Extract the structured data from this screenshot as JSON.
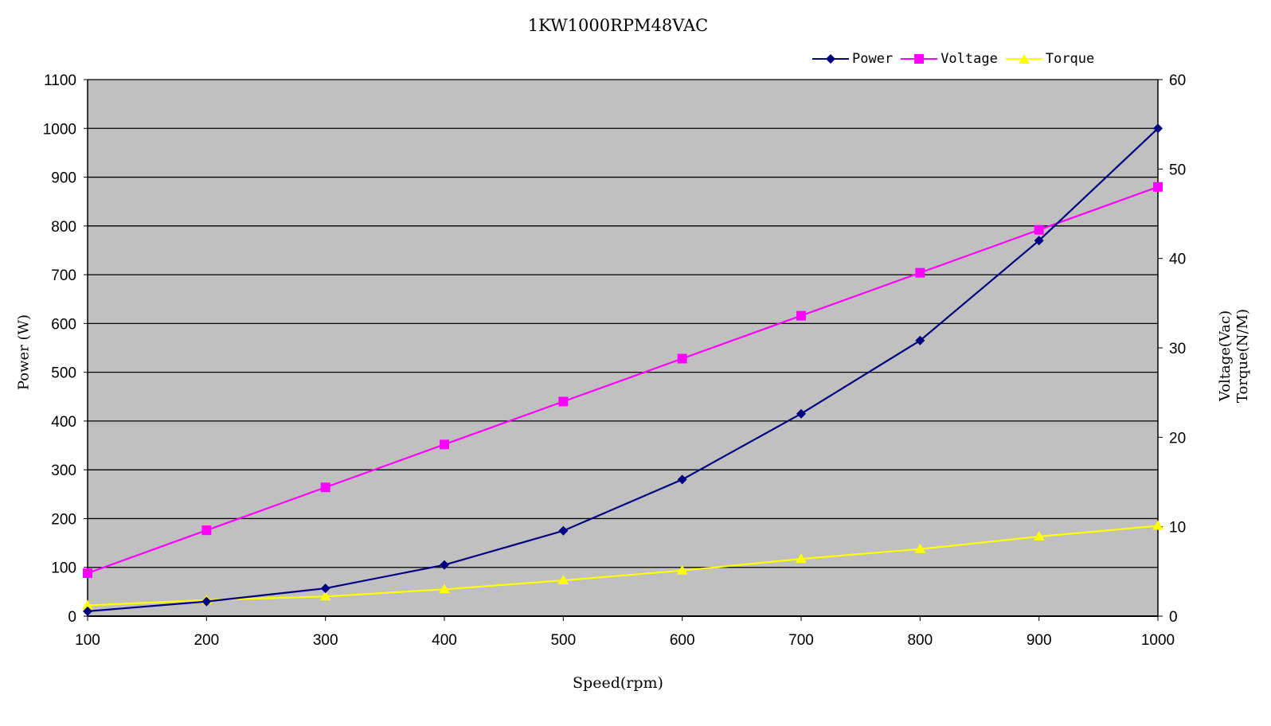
{
  "chart_data": {
    "type": "line",
    "title": "1KW1000RPM48VAC",
    "xlabel": "Speed(rpm)",
    "ylabel": "Power (W)",
    "ylabel_right": [
      "Voltage(Vac)",
      "Torque(N/M)"
    ],
    "x": [
      100,
      200,
      300,
      400,
      500,
      600,
      700,
      800,
      900,
      1000
    ],
    "xlim": [
      100,
      1000
    ],
    "ylim": [
      0,
      1100
    ],
    "ylim_right": [
      0,
      60
    ],
    "yticks_left": [
      0,
      100,
      200,
      300,
      400,
      500,
      600,
      700,
      800,
      900,
      1000,
      1100
    ],
    "yticks_right": [
      0,
      10,
      20,
      30,
      40,
      50,
      60
    ],
    "grid": true,
    "legend_position": "top-right",
    "plot_background": "#c0c0c0",
    "series": [
      {
        "name": "Power",
        "axis": "left",
        "color": "#000080",
        "marker": "diamond",
        "values": [
          10,
          30,
          57,
          105,
          175,
          280,
          415,
          565,
          770,
          1000
        ]
      },
      {
        "name": "Voltage",
        "axis": "right",
        "color": "#ff00ff",
        "marker": "square",
        "values": [
          4.8,
          9.6,
          14.4,
          19.2,
          24,
          28.8,
          33.6,
          38.4,
          43.2,
          48
        ]
      },
      {
        "name": "Torque",
        "axis": "right",
        "color": "#ffff00",
        "marker": "triangle",
        "values": [
          1.2,
          1.8,
          2.2,
          3.0,
          4.0,
          5.1,
          6.4,
          7.5,
          8.9,
          10.1
        ]
      }
    ]
  },
  "labels": {
    "title": "1KW1000RPM48VAC",
    "xlabel": "Speed(rpm)",
    "ylabel_left": "Power (W)",
    "ylabel_right_line1": "Voltage(Vac)",
    "ylabel_right_line2": "Torque(N/M)"
  },
  "legend": [
    {
      "label": "Power",
      "color": "#000080",
      "marker": "diamond-icon"
    },
    {
      "label": "Voltage",
      "color": "#ff00ff",
      "marker": "square-icon"
    },
    {
      "label": "Torque",
      "color": "#ffff00",
      "marker": "triangle-icon"
    }
  ]
}
